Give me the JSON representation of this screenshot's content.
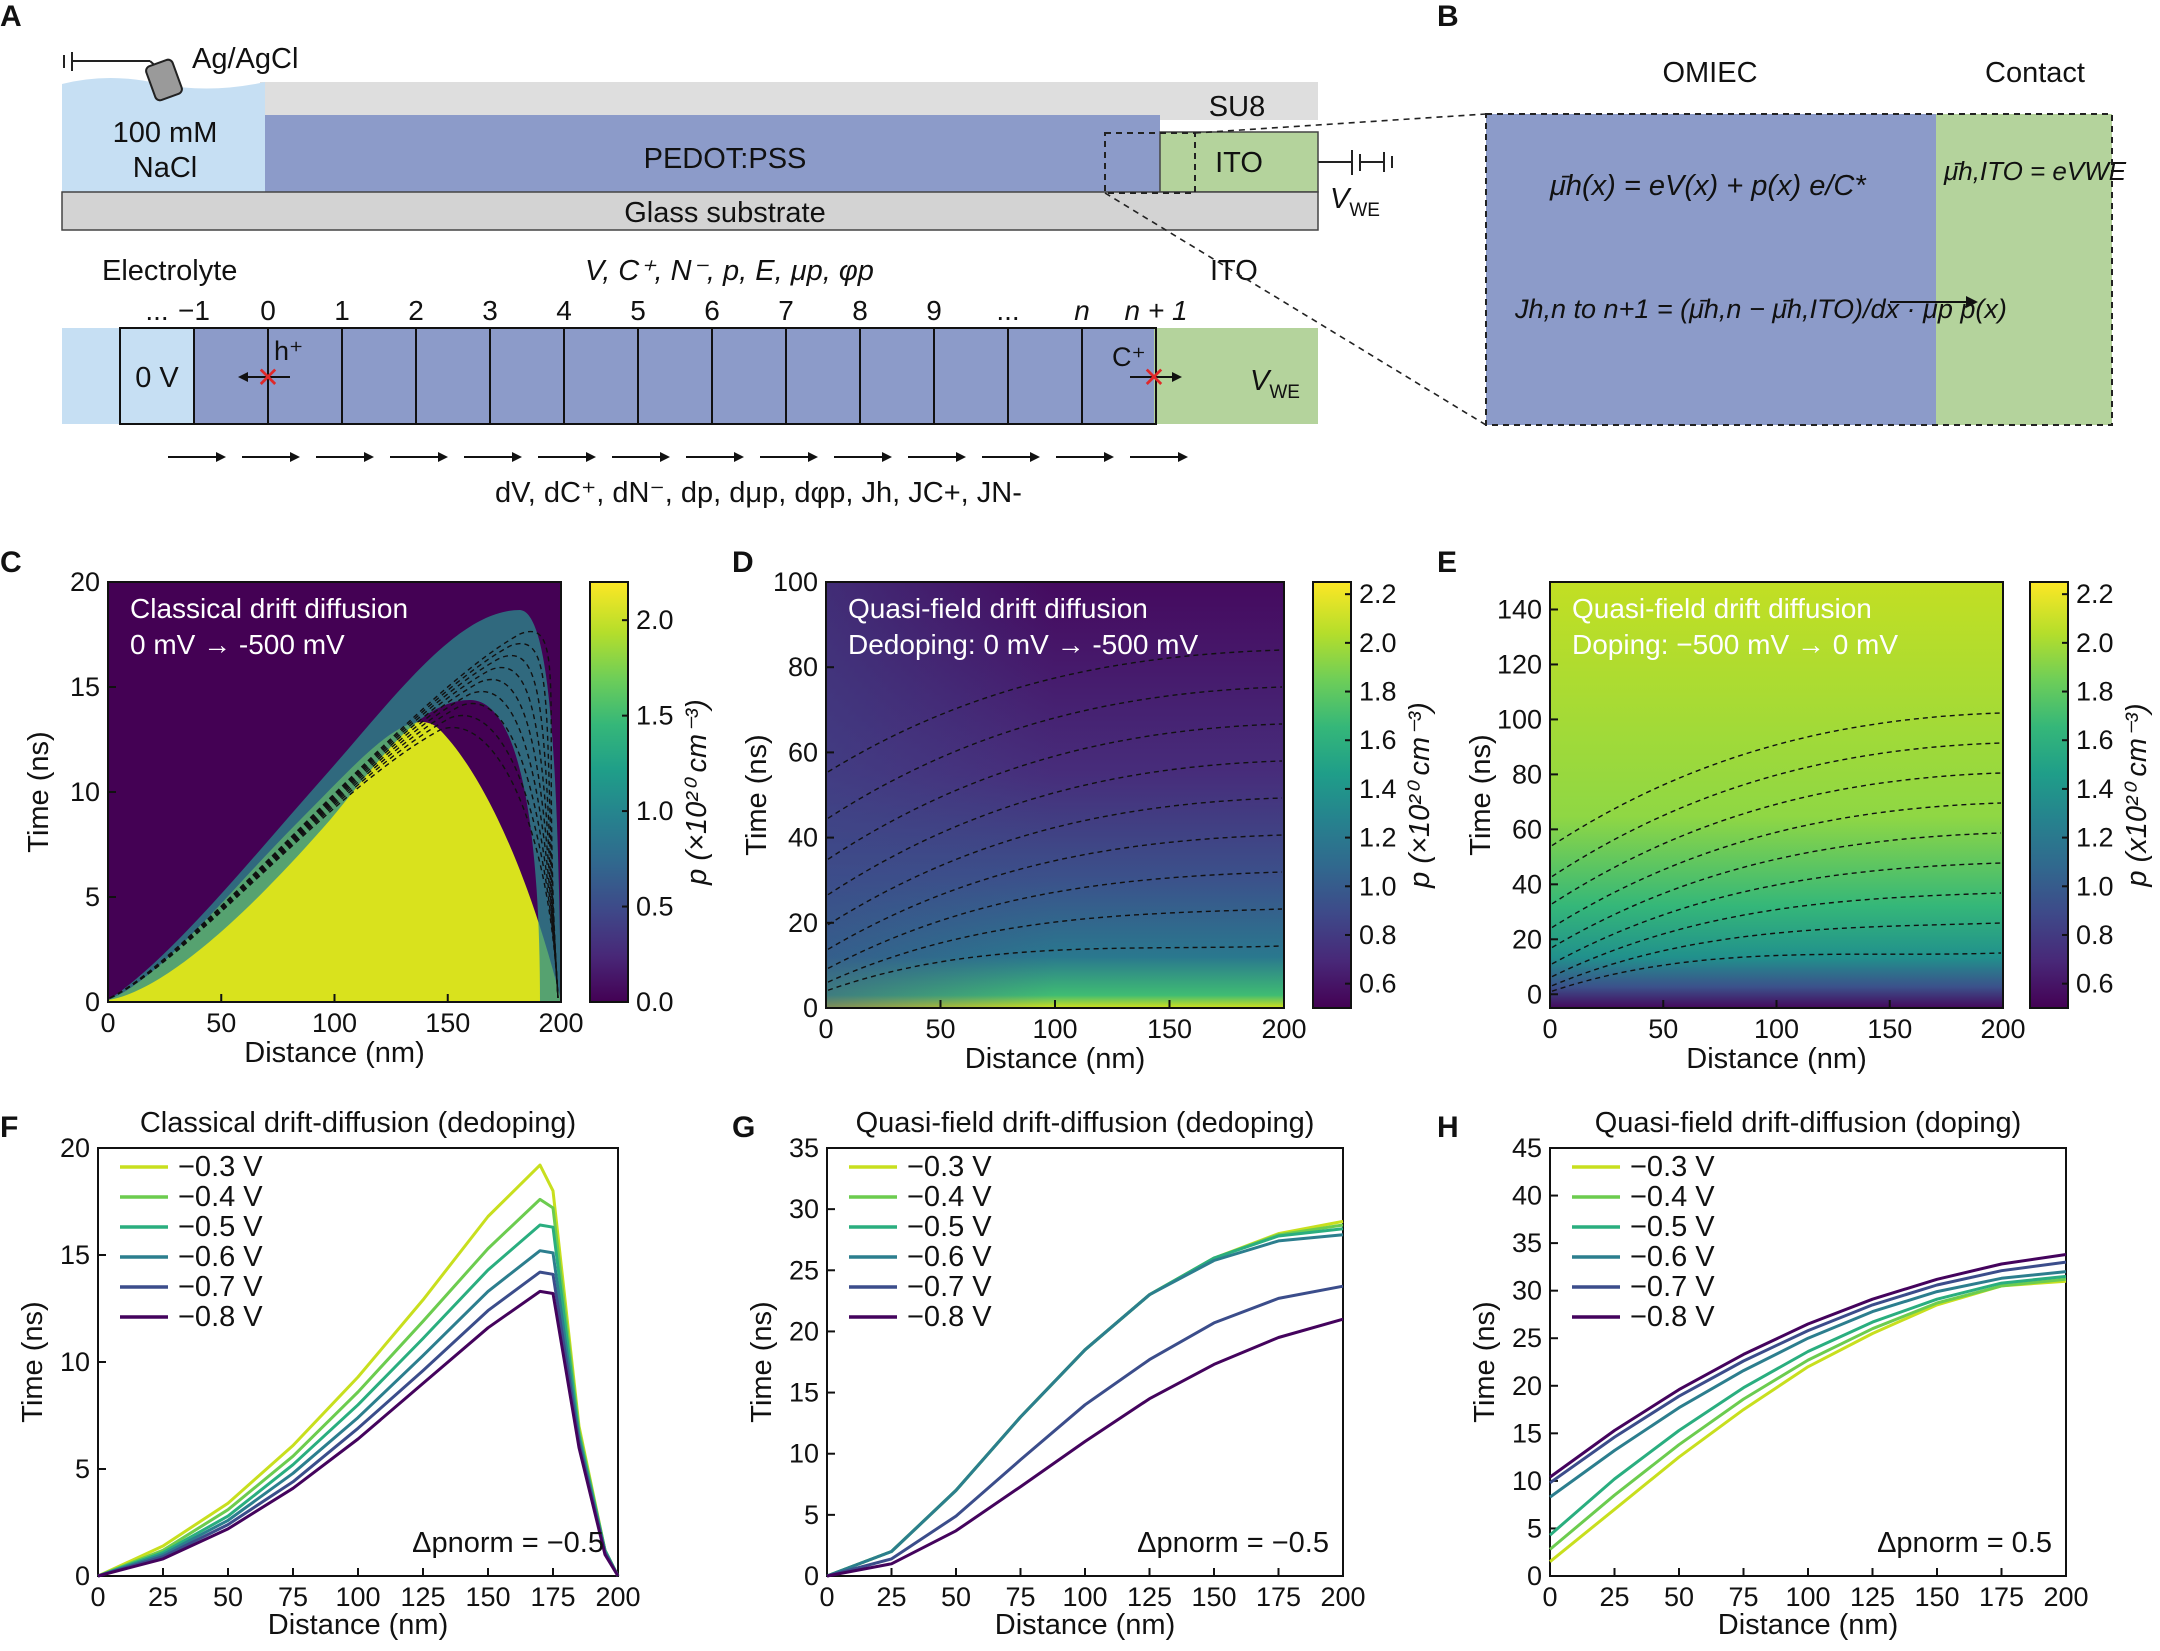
{
  "colors": {
    "electrolyte": "#c6dff3",
    "pedot": "#8c9bc9",
    "ito": "#b4d39c",
    "su8": "#dedede",
    "glass": "#d3d3d3",
    "marker": "#e02828",
    "series": [
      "#c8df1e",
      "#6ccc4f",
      "#2aae7f",
      "#2c7e8e",
      "#3b4d8b",
      "#44035d"
    ],
    "viridis": [
      "#440154",
      "#482878",
      "#3e4989",
      "#31688e",
      "#26828e",
      "#1f9e89",
      "#35b779",
      "#6ece58",
      "#b5de2b",
      "#fde725"
    ]
  },
  "panelA": {
    "letter": "A",
    "ref_electrode": "Ag/AgCl",
    "electrolyte_label1": "100 mM",
    "electrolyte_label2": "NaCl",
    "pedot": "PEDOT:PSS",
    "su8": "SU8",
    "ito": "ITO",
    "glass": "Glass substrate",
    "vwe_main": "V",
    "vwe_sub": "WE",
    "electrolyte": "Electrolyte",
    "ito2": "ITO",
    "vars": "V, C⁺, N⁻, p, E, μp, φp",
    "cell_indices": [
      "...",
      "−1",
      "0",
      "1",
      "2",
      "3",
      "4",
      "5",
      "6",
      "7",
      "8",
      "9",
      "...",
      "n",
      "n + 1"
    ],
    "zero_v": "0 V",
    "h_plus": "h⁺",
    "c_plus": "C⁺",
    "fluxes": "dV, dC⁺, dN⁻, dp, dμp, dφp, Jh, JC+, JN-"
  },
  "panelB": {
    "letter": "B",
    "omiec": "OMIEC",
    "contact": "Contact",
    "eq1": "μ̄h(x) = eV(x) + p(x) e/C*",
    "eq2": "μ̄h,ITO = eVWE",
    "eq3": "Jh,n to n+1 = (μ̄h,n − μ̄h,ITO)/dx · μp p(x)"
  },
  "heatmaps": [
    {
      "letter": "C",
      "title1": "Classical drift diffusion",
      "title2": "0 mV → -500 mV",
      "xlabel": "Distance (nm)",
      "ylabel": "Time (ns)",
      "xticks": [
        "0",
        "50",
        "100",
        "150",
        "200"
      ],
      "yticks": [
        "0",
        "5",
        "10",
        "15",
        "20"
      ],
      "cbar_ticks": [
        "0.0",
        "0.5",
        "1.0",
        "1.5",
        "2.0"
      ],
      "cbar_label": "p (×10²⁰ cm⁻³)",
      "xlim": [
        0,
        200
      ],
      "ylim": [
        0,
        20
      ],
      "clim": [
        0.0,
        2.2
      ]
    },
    {
      "letter": "D",
      "title1": "Quasi-field drift diffusion",
      "title2": "Dedoping: 0 mV → -500 mV",
      "xlabel": "Distance (nm)",
      "ylabel": "Time (ns)",
      "xticks": [
        "0",
        "50",
        "100",
        "150",
        "200"
      ],
      "yticks": [
        "0",
        "20",
        "40",
        "60",
        "80",
        "100"
      ],
      "cbar_ticks": [
        "0.6",
        "0.8",
        "1.0",
        "1.2",
        "1.4",
        "1.6",
        "1.8",
        "2.0",
        "2.2"
      ],
      "cbar_label": "p (×10²⁰ cm⁻³)",
      "xlim": [
        0,
        200
      ],
      "ylim": [
        0,
        100
      ],
      "clim": [
        0.5,
        2.25
      ]
    },
    {
      "letter": "E",
      "title1": "Quasi-field drift diffusion",
      "title2": "Doping: −500 mV → 0 mV",
      "xlabel": "Distance (nm)",
      "ylabel": "Time (ns)",
      "xticks": [
        "0",
        "50",
        "100",
        "150",
        "200"
      ],
      "yticks": [
        "0",
        "20",
        "40",
        "60",
        "80",
        "100",
        "120",
        "140"
      ],
      "cbar_ticks": [
        "0.6",
        "0.8",
        "1.0",
        "1.2",
        "1.4",
        "1.6",
        "1.8",
        "2.0",
        "2.2"
      ],
      "cbar_label": "p (x10²⁰ cm⁻³)",
      "xlim": [
        0,
        200
      ],
      "ylim": [
        -5,
        150
      ],
      "clim": [
        0.5,
        2.25
      ]
    }
  ],
  "chart_data": [
    {
      "type": "line",
      "letter": "F",
      "title": "Classical drift-diffusion (dedoping)",
      "xlabel": "Distance (nm)",
      "ylabel": "Time (ns)",
      "xlim": [
        0,
        200
      ],
      "ylim": [
        0,
        20
      ],
      "xticks": [
        "0",
        "25",
        "50",
        "75",
        "100",
        "125",
        "150",
        "175",
        "200"
      ],
      "yticks": [
        "0",
        "5",
        "10",
        "15",
        "20"
      ],
      "annotation": "Δpnorm = −0.5",
      "x": [
        0,
        25,
        50,
        75,
        100,
        125,
        150,
        170,
        175,
        185,
        195,
        200
      ],
      "series": [
        {
          "name": "−0.3 V",
          "values": [
            0,
            1.4,
            3.4,
            6.1,
            9.3,
            12.9,
            16.8,
            19.2,
            18.0,
            7.0,
            1.2,
            0
          ]
        },
        {
          "name": "−0.4 V",
          "values": [
            0,
            1.2,
            3.1,
            5.6,
            8.6,
            11.9,
            15.3,
            17.6,
            17.2,
            6.8,
            1.2,
            0
          ]
        },
        {
          "name": "−0.5 V",
          "values": [
            0,
            1.1,
            2.8,
            5.2,
            8.0,
            11.1,
            14.3,
            16.4,
            16.3,
            6.6,
            1.2,
            0
          ]
        },
        {
          "name": "−0.6 V",
          "values": [
            0,
            1.0,
            2.6,
            4.8,
            7.4,
            10.3,
            13.3,
            15.2,
            15.1,
            6.4,
            1.1,
            0
          ]
        },
        {
          "name": "−0.7 V",
          "values": [
            0,
            0.9,
            2.4,
            4.4,
            6.9,
            9.6,
            12.4,
            14.2,
            14.1,
            6.2,
            1.1,
            0
          ]
        },
        {
          "name": "−0.8 V",
          "values": [
            0,
            0.8,
            2.2,
            4.1,
            6.4,
            9.0,
            11.6,
            13.3,
            13.2,
            6.0,
            1.0,
            0
          ]
        }
      ]
    },
    {
      "type": "line",
      "letter": "G",
      "title": "Quasi-field drift-diffusion (dedoping)",
      "xlabel": "Distance (nm)",
      "ylabel": "Time (ns)",
      "xlim": [
        0,
        200
      ],
      "ylim": [
        0,
        35
      ],
      "xticks": [
        "0",
        "25",
        "50",
        "75",
        "100",
        "125",
        "150",
        "175",
        "200"
      ],
      "yticks": [
        "0",
        "5",
        "10",
        "15",
        "20",
        "25",
        "30",
        "35"
      ],
      "annotation": "Δpnorm = −0.5",
      "x": [
        0,
        25,
        50,
        75,
        100,
        125,
        150,
        175,
        200
      ],
      "series": [
        {
          "name": "−0.3 V",
          "values": [
            0,
            2.0,
            7.0,
            13.0,
            18.5,
            23.0,
            26.0,
            28.0,
            29.0
          ]
        },
        {
          "name": "−0.4 V",
          "values": [
            0,
            2.0,
            7.0,
            13.0,
            18.5,
            23.0,
            26.0,
            27.9,
            28.7
          ]
        },
        {
          "name": "−0.5 V",
          "values": [
            0,
            2.0,
            7.0,
            13.0,
            18.5,
            23.0,
            26.0,
            27.8,
            28.4
          ]
        },
        {
          "name": "−0.6 V",
          "values": [
            0,
            2.0,
            7.0,
            13.0,
            18.5,
            23.0,
            25.8,
            27.4,
            27.9
          ]
        },
        {
          "name": "−0.7 V",
          "values": [
            0,
            1.4,
            4.9,
            9.5,
            14.0,
            17.7,
            20.7,
            22.7,
            23.7
          ]
        },
        {
          "name": "−0.8 V",
          "values": [
            0,
            1.0,
            3.7,
            7.3,
            11.0,
            14.5,
            17.3,
            19.5,
            21.0
          ]
        }
      ]
    },
    {
      "type": "line",
      "letter": "H",
      "title": "Quasi-field drift-diffusion (doping)",
      "xlabel": "Distance (nm)",
      "ylabel": "Time (ns)",
      "xlim": [
        0,
        200
      ],
      "ylim": [
        0,
        45
      ],
      "xticks": [
        "0",
        "25",
        "50",
        "75",
        "100",
        "125",
        "150",
        "175",
        "200"
      ],
      "yticks": [
        "0",
        "5",
        "10",
        "15",
        "20",
        "25",
        "30",
        "35",
        "40",
        "45"
      ],
      "annotation": "Δpnorm = 0.5",
      "x": [
        0,
        25,
        50,
        75,
        100,
        125,
        150,
        175,
        200
      ],
      "series": [
        {
          "name": "−0.3 V",
          "values": [
            1.5,
            7.0,
            12.5,
            17.5,
            22.0,
            25.5,
            28.5,
            30.5,
            31.0
          ]
        },
        {
          "name": "−0.4 V",
          "values": [
            2.8,
            8.5,
            13.8,
            18.6,
            22.7,
            26.0,
            28.7,
            30.5,
            31.2
          ]
        },
        {
          "name": "−0.5 V",
          "values": [
            4.3,
            10.2,
            15.3,
            19.8,
            23.6,
            26.7,
            29.1,
            30.8,
            31.5
          ]
        },
        {
          "name": "−0.6 V",
          "values": [
            8.3,
            13.2,
            17.7,
            21.6,
            25.0,
            27.8,
            29.9,
            31.3,
            32.0
          ]
        },
        {
          "name": "−0.7 V",
          "values": [
            9.8,
            14.6,
            18.9,
            22.6,
            25.8,
            28.5,
            30.6,
            32.1,
            33.0
          ]
        },
        {
          "name": "−0.8 V",
          "values": [
            10.4,
            15.3,
            19.6,
            23.3,
            26.5,
            29.1,
            31.2,
            32.8,
            33.8
          ]
        }
      ]
    }
  ]
}
